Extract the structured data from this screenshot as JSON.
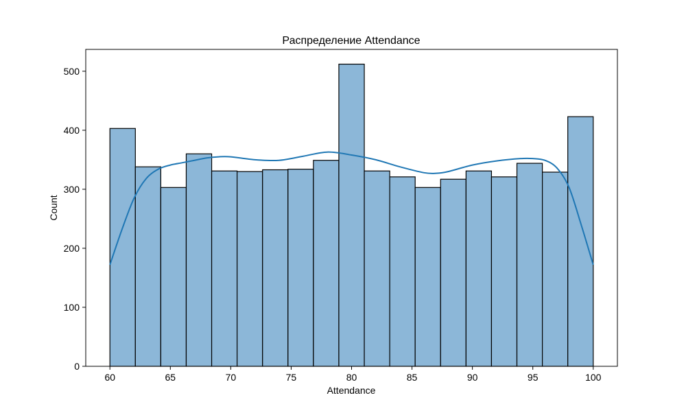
{
  "chart_data": {
    "type": "bar",
    "subtype": "histogram-with-kde",
    "title": "Распределение Attendance",
    "xlabel": "Attendance",
    "ylabel": "Count",
    "xlim": [
      58,
      102
    ],
    "ylim": [
      0,
      537
    ],
    "xticks": [
      60,
      65,
      70,
      75,
      80,
      85,
      90,
      95,
      100
    ],
    "yticks": [
      0,
      100,
      200,
      300,
      400,
      500
    ],
    "bin_edges": [
      60.0,
      62.105,
      64.211,
      66.316,
      68.421,
      70.526,
      72.632,
      74.737,
      76.842,
      78.947,
      81.053,
      83.158,
      85.263,
      87.368,
      89.474,
      91.579,
      93.684,
      95.789,
      97.895,
      100.0
    ],
    "values": [
      403,
      338,
      303,
      360,
      331,
      330,
      333,
      334,
      349,
      512,
      331,
      321,
      303,
      317,
      331,
      321,
      344,
      329,
      423
    ],
    "bar_color": "#8cb7d8",
    "bar_edge_color": "#000000",
    "kde": {
      "color": "#1f77b4",
      "x": [
        60,
        61,
        62,
        63,
        64,
        65,
        66,
        67,
        68,
        69,
        70,
        72,
        74,
        76,
        78,
        80,
        82,
        84,
        86,
        87,
        88,
        90,
        92,
        94,
        95,
        96,
        97,
        98,
        99,
        100
      ],
      "y": [
        172,
        232,
        285,
        318,
        334,
        341,
        345,
        349,
        353,
        355,
        355,
        350,
        349,
        356,
        363,
        358,
        350,
        338,
        328,
        327,
        330,
        341,
        348,
        352,
        352,
        349,
        336,
        303,
        240,
        172
      ]
    },
    "grid": false,
    "legend": "none"
  }
}
